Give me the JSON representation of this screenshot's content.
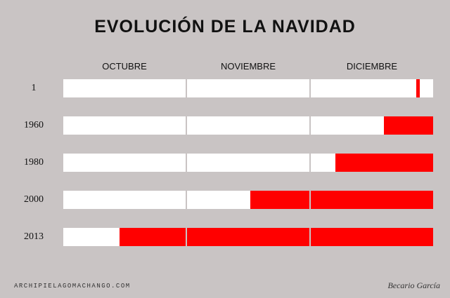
{
  "chart_data": {
    "type": "bar",
    "title": "EVOLUCIÓN DE LA NAVIDAD",
    "months": [
      "OCTUBRE",
      "NOVIEMBRE",
      "DICIEMBRE"
    ],
    "rows": [
      {
        "label": "1",
        "christmas_start": 2.86,
        "christmas_end": 2.89
      },
      {
        "label": "1960",
        "christmas_start": 2.6,
        "christmas_end": 3.0
      },
      {
        "label": "1980",
        "christmas_start": 2.2,
        "christmas_end": 3.0
      },
      {
        "label": "2000",
        "christmas_start": 1.52,
        "christmas_end": 3.0
      },
      {
        "label": "2013",
        "christmas_start": 0.46,
        "christmas_end": 3.0
      }
    ],
    "colors": {
      "christmas": "#ff0000",
      "empty": "#ffffff",
      "background": "#c9c4c4"
    }
  },
  "footer": {
    "site": "ARCHIPIELAGOMACHANGO.COM",
    "author": "Becario García"
  }
}
